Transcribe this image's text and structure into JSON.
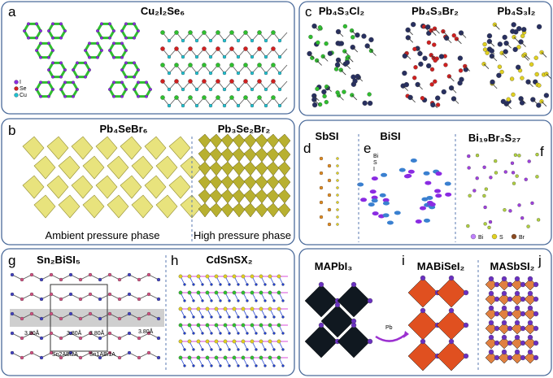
{
  "panels": {
    "a": {
      "label": "a",
      "title": "Cu₂I₂Se₆",
      "legend": [
        "I",
        "Se",
        "Cu"
      ]
    },
    "b": {
      "label": "b",
      "titles": [
        "Pb₄SeBr₆",
        "Pb₃Se₂Br₂"
      ],
      "captions": [
        "Ambient pressure phase",
        "High pressure phase"
      ]
    },
    "c": {
      "label": "c",
      "titles": [
        "Pb₄S₃Cl₂",
        "Pb₄S₃Br₂",
        "Pb₄S₃I₂"
      ]
    },
    "d": {
      "label": "d",
      "title": "SbSI"
    },
    "e": {
      "label": "e",
      "title": "BiSI",
      "legend": [
        "Bi",
        "S",
        "I"
      ]
    },
    "f": {
      "label": "f",
      "title": "Bi₁₉Br₃S₂₇",
      "legend": [
        "Bi",
        "S",
        "Br"
      ]
    },
    "g": {
      "label": "g",
      "title": "Sn₂BiSI₅",
      "annotations": [
        "3.80Å",
        "3.80Å",
        "3.80Å",
        "3.80Å",
        "Sn2ABi2A",
        "Sn1ABi1A"
      ]
    },
    "h": {
      "label": "h",
      "title": "CdSnSX₂"
    },
    "i": {
      "label": "i",
      "titles": [
        "MAPbI₃",
        "MABiSeI₂"
      ],
      "arrow_label": "Pb"
    },
    "j": {
      "label": "j",
      "title": "MASbSI₂"
    }
  }
}
